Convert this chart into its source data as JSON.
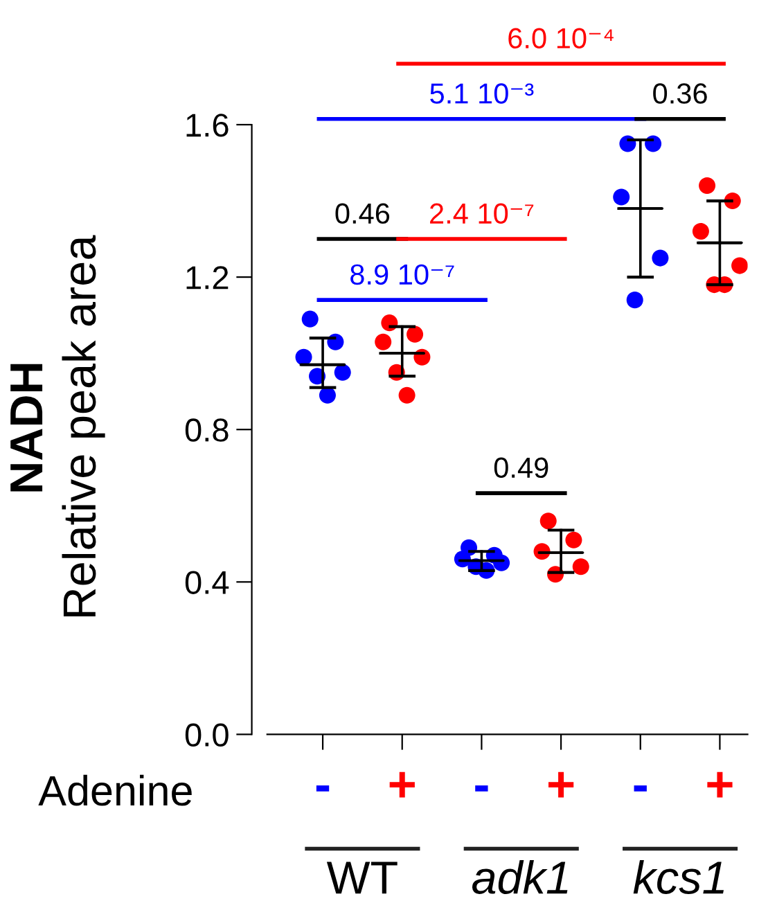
{
  "chart_data": {
    "type": "scatter",
    "ylabel": "NADH\nRelative peak area",
    "categories": [
      "-",
      "+",
      "-",
      "+",
      "-",
      "+"
    ],
    "series": [
      {
        "colors": [
          "#0000ff",
          "#ff0000",
          "#0000ff",
          "#ff0000",
          "#0000ff",
          "#ff0000"
        ],
        "values": [
          1.09,
          1.08,
          0.49,
          0.56,
          1.55,
          1.44
        ]
      },
      {
        "colors": [
          "#0000ff",
          "#ff0000",
          "#0000ff",
          "#ff0000",
          "#0000ff",
          "#ff0000"
        ],
        "values": [
          1.03,
          1.05,
          0.47,
          0.51,
          1.55,
          1.4
        ]
      },
      {
        "colors": [
          "#0000ff",
          "#ff0000",
          "#0000ff",
          "#ff0000",
          "#0000ff",
          "#ff0000"
        ],
        "values": [
          0.99,
          1.03,
          0.46,
          0.48,
          1.41,
          1.32
        ]
      },
      {
        "colors": [
          "#0000ff",
          "#ff0000",
          "#0000ff",
          "#ff0000",
          "#0000ff",
          "#ff0000"
        ],
        "values": [
          0.95,
          0.99,
          0.45,
          0.44,
          1.25,
          1.23
        ]
      },
      {
        "colors": [
          "#0000ff",
          "#ff0000",
          "#0000ff",
          "#ff0000",
          "#0000ff",
          "#ff0000"
        ],
        "values": [
          0.94,
          0.95,
          0.44,
          0.42,
          1.14,
          1.18
        ]
      },
      {
        "colors": [
          "#0000ff",
          "#ff0000",
          "#0000ff",
          "#ff0000",
          "#0000ff",
          "#ff0000"
        ],
        "values": [
          0.89,
          0.89,
          0.43,
          null,
          null,
          1.18
        ]
      },
      {
        "type": "box",
        "color": "#000000",
        "boxes": [
          {
            "low": 0.91,
            "q1": 0.97,
            "median": 0.97,
            "q3": 0.97,
            "high": 1.04
          },
          {
            "low": 0.94,
            "q1": 1.0,
            "median": 1.0,
            "q3": 1.0,
            "high": 1.07
          },
          {
            "low": 0.43,
            "q1": 0.456,
            "median": 0.456,
            "q3": 0.456,
            "high": 0.48
          },
          {
            "low": 0.425,
            "q1": 0.477,
            "median": 0.477,
            "q3": 0.477,
            "high": 0.536
          },
          {
            "low": 1.2,
            "q1": 1.38,
            "median": 1.38,
            "q3": 1.38,
            "high": 1.56
          },
          {
            "low": 1.18,
            "q1": 1.29,
            "median": 1.29,
            "q3": 1.29,
            "high": 1.4
          }
        ]
      }
    ],
    "ylim": [
      0,
      1.6
    ],
    "yticks": [
      {
        "value": 0,
        "label": "0.0"
      },
      0.4,
      0.8,
      1.2,
      1.6
    ],
    "grid": false,
    "legend": false,
    "annotations": [
      "0.46",
      "2.4 10⁻⁷",
      "8.9 10⁻⁷",
      "0.49",
      "5.1 10⁻³",
      "6.0 10⁻⁴",
      "0.36",
      "Adenine",
      "WT",
      "adk1",
      "kcs1"
    ]
  }
}
